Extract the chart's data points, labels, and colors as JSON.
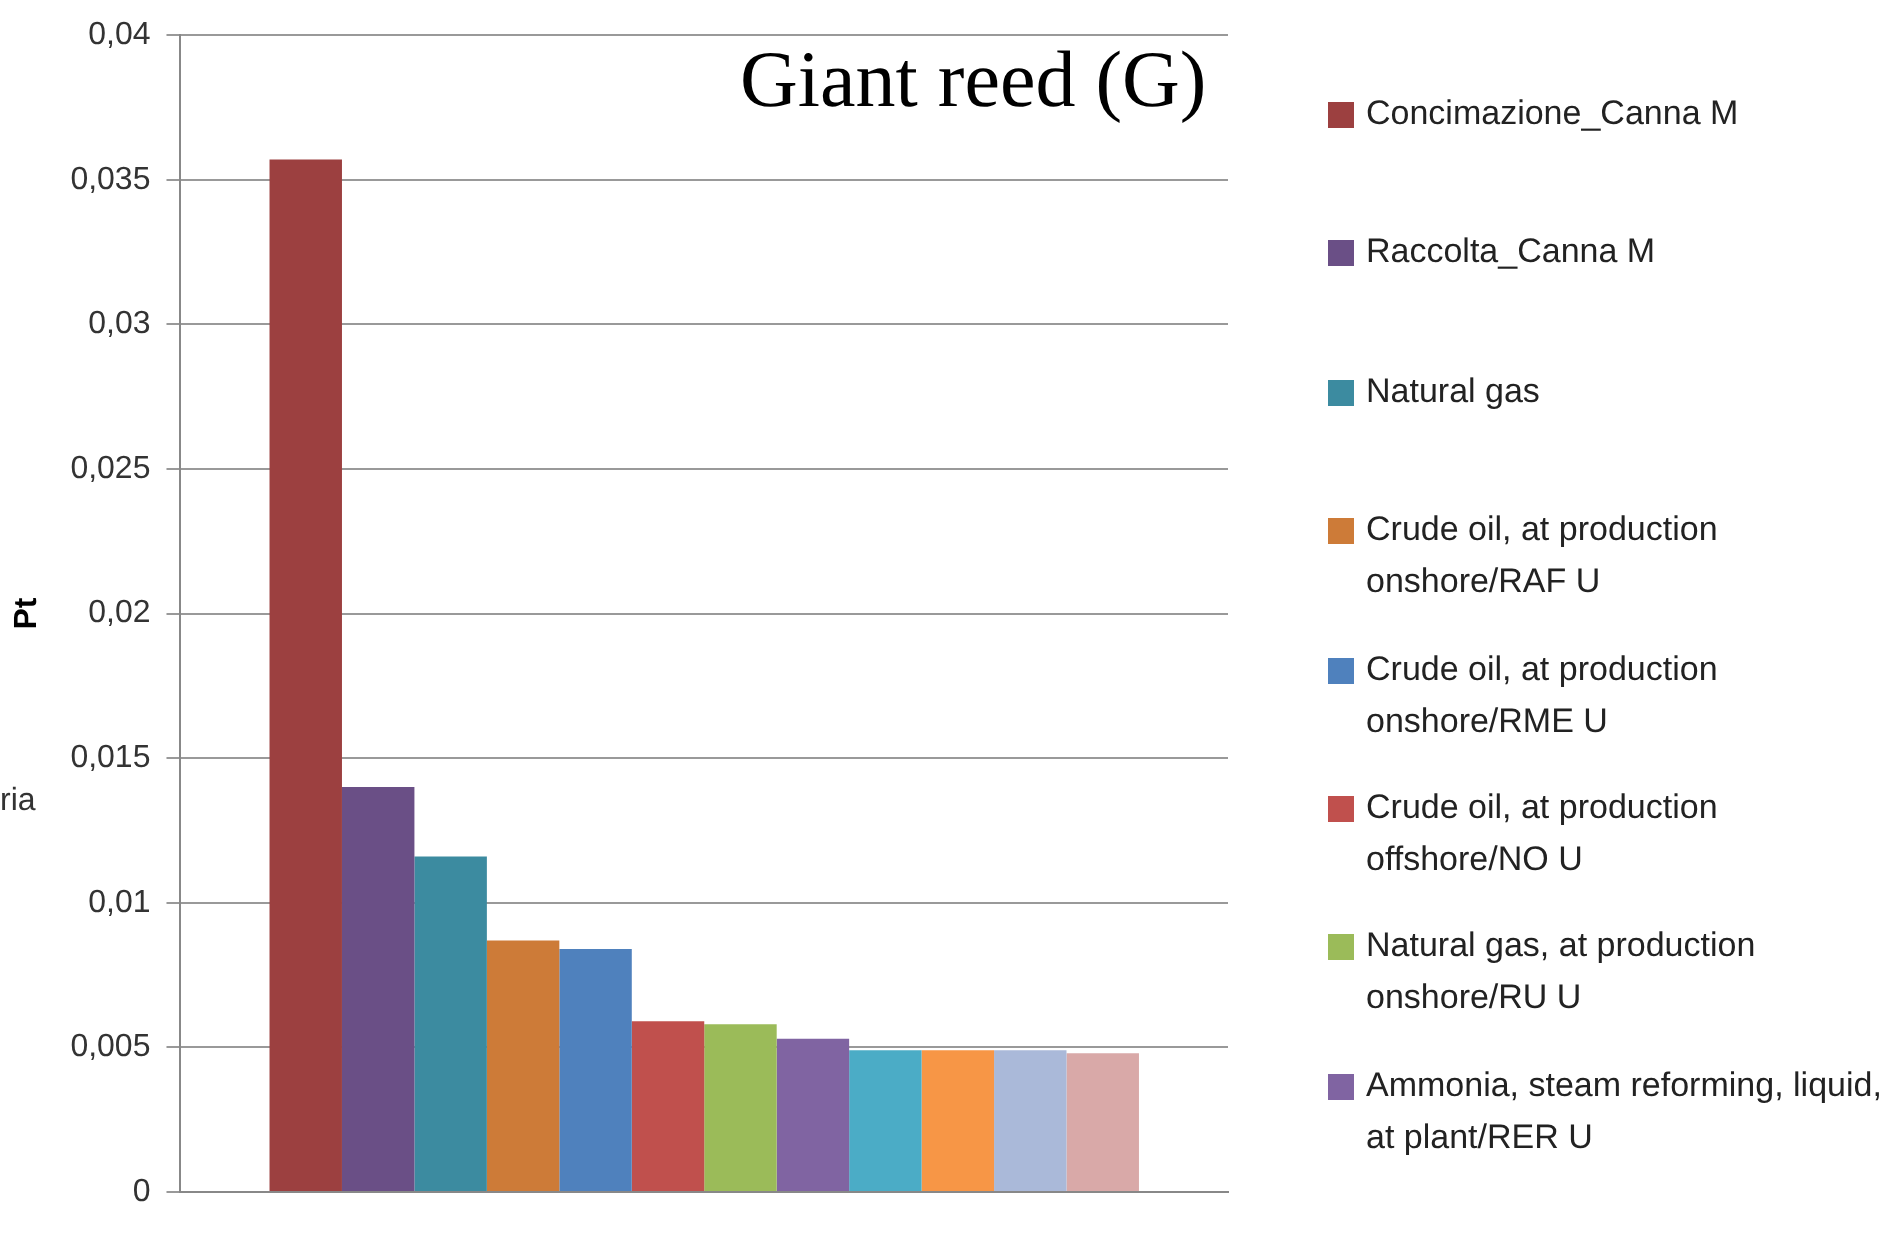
{
  "chart_data": {
    "type": "bar",
    "title": "Giant reed (G)",
    "ylabel": "Pt",
    "categories": [
      null
    ],
    "series": [
      {
        "name": "Concimazione_Canna M",
        "color": "#9c4040",
        "values": [
          0.0357
        ]
      },
      {
        "name": "Raccolta_Canna M",
        "color": "#6a4f86",
        "values": [
          0.014
        ]
      },
      {
        "name": "Natural gas",
        "color": "#3c8ba0",
        "values": [
          0.0116
        ]
      },
      {
        "name": "Crude oil, at production onshore/RAF U",
        "color": "#cd7b38",
        "values": [
          0.0087
        ]
      },
      {
        "name": "Crude oil, at production onshore/RME U",
        "color": "#4f81bd",
        "values": [
          0.0084
        ]
      },
      {
        "name": "Crude oil, at production offshore/NO U",
        "color": "#c0504d",
        "values": [
          0.0059
        ]
      },
      {
        "name": "Natural gas, at production onshore/RU U",
        "color": "#9bbb59",
        "values": [
          0.0058
        ]
      },
      {
        "name": "Ammonia, steam reforming, liquid, at plant/RER U",
        "color": "#8064a2",
        "values": [
          0.0053
        ]
      },
      {
        "color": "#4bacc6",
        "values": [
          0.0049
        ]
      },
      {
        "color": "#f79646",
        "values": [
          0.0049
        ]
      },
      {
        "color": "#aab9d9",
        "values": [
          0.0049
        ]
      },
      {
        "color": "#d9a9a8",
        "values": [
          0.0048
        ]
      }
    ],
    "ylim": [
      0,
      0.04
    ],
    "yticks": [
      0,
      {
        "value": 0.005,
        "label": "0,005"
      },
      {
        "value": 0.01,
        "label": "0,01"
      },
      {
        "value": 0.015,
        "label": "0,015"
      },
      {
        "value": 0.02,
        "label": "0,02"
      },
      {
        "value": 0.025,
        "label": "0,025"
      },
      {
        "value": 0.03,
        "label": "0,03"
      },
      {
        "value": 0.035,
        "label": "0,035"
      },
      {
        "value": 0.04,
        "label": "0,04"
      }
    ],
    "grid": "y",
    "legend": "right",
    "annotations": [
      "ria"
    ]
  }
}
